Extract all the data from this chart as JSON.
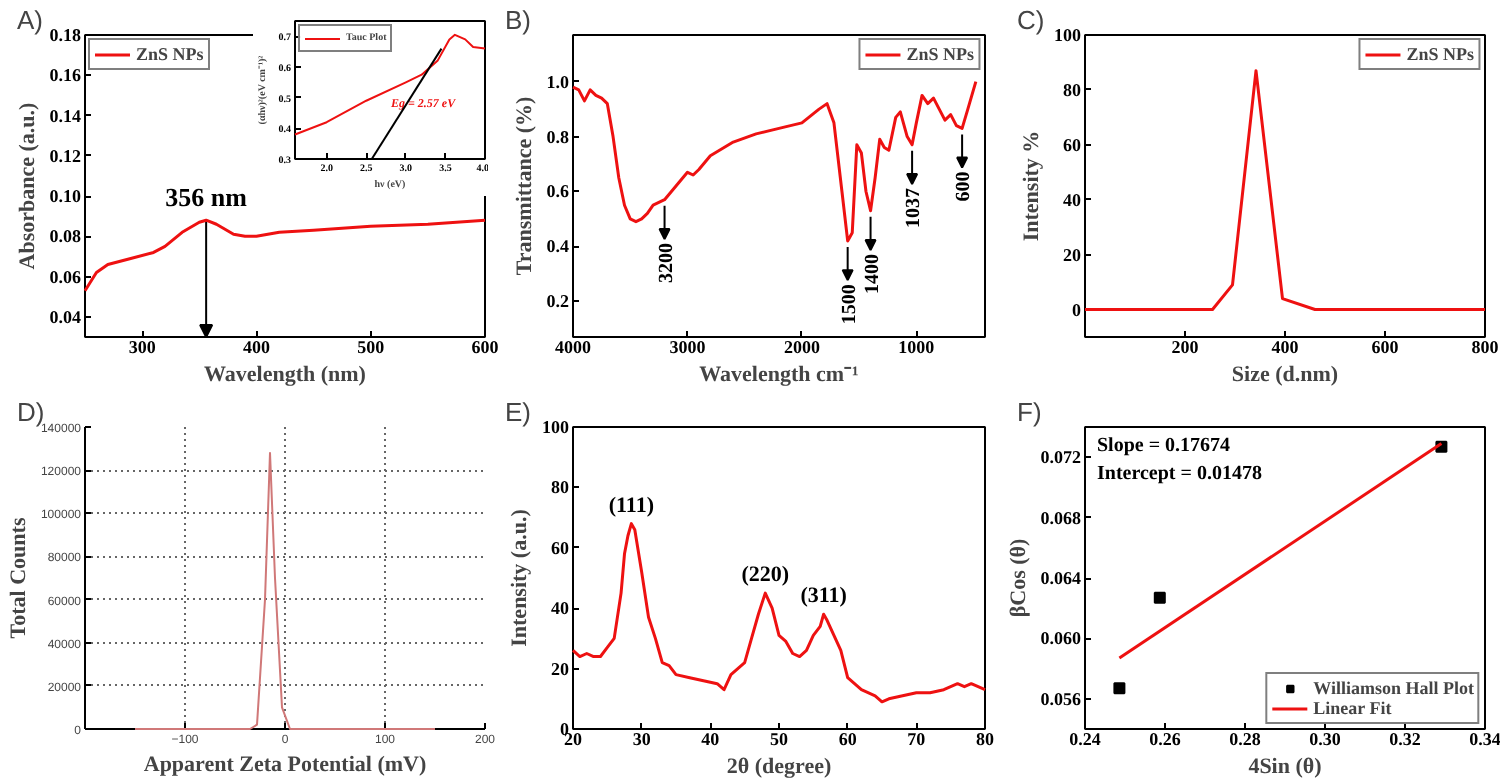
{
  "chart_data": [
    {
      "type": "line",
      "title": "A)",
      "xlabel": "Wavelength (nm)",
      "ylabel": "Absorbance (a.u.)",
      "xlim": [
        250,
        600
      ],
      "ylim": [
        0.03,
        0.18
      ],
      "xticks": [
        300,
        400,
        500,
        600
      ],
      "yticks": [
        0.04,
        0.06,
        0.08,
        {
          "value": 0.1,
          "label": "0.10"
        },
        0.12,
        0.14,
        0.16,
        0.18
      ],
      "legend": "top left",
      "series": [
        {
          "name": "ZnS NPs",
          "color": "#ee1111",
          "x": [
            250,
            260,
            270,
            290,
            310,
            320,
            335,
            350,
            356,
            365,
            380,
            390,
            400,
            420,
            450,
            500,
            550,
            600
          ],
          "values": [
            0.053,
            0.062,
            0.066,
            0.069,
            0.072,
            0.075,
            0.082,
            0.087,
            0.088,
            0.086,
            0.081,
            0.08,
            0.08,
            0.082,
            0.083,
            0.085,
            0.086,
            0.088
          ]
        }
      ],
      "annotations": [
        {
          "text": "356 nm",
          "x": 356,
          "y": 0.088
        }
      ]
    },
    {
      "type": "line",
      "xlabel": "hν (eV)",
      "ylabel": "(αhν)²(eV cm⁻¹)²",
      "xlim": [
        1.6,
        4.0
      ],
      "ylim": [
        0.3,
        0.75
      ],
      "xticks": [
        {
          "value": 2.0,
          "label": "2.0"
        },
        2.5,
        {
          "value": 3.0,
          "label": "3.0"
        },
        3.5,
        {
          "value": 4.0,
          "label": "4.0"
        }
      ],
      "yticks": [
        0.3,
        0.4,
        0.5,
        0.6,
        0.7
      ],
      "legend": "top left",
      "series": [
        {
          "name": "Tauc Plot",
          "color": "#ee1111",
          "x": [
            1.6,
            2.0,
            2.5,
            3.0,
            3.2,
            3.4,
            3.55,
            3.62,
            3.75,
            3.85,
            4.0
          ],
          "values": [
            0.38,
            0.42,
            0.49,
            0.55,
            0.575,
            0.62,
            0.69,
            0.705,
            0.69,
            0.665,
            0.66
          ]
        },
        {
          "color": "#000000",
          "x": [
            2.57,
            3.45
          ],
          "values": [
            0.3,
            0.66
          ]
        }
      ],
      "annotations": [
        "Eg = 2.57 eV"
      ]
    },
    {
      "type": "line",
      "title": "B)",
      "xlabel": "Wavelength cm⁻¹",
      "ylabel": "Transmittance (%)",
      "xlim": [
        4000,
        400
      ],
      "ylim": [
        0.07,
        1.17
      ],
      "xticks": [
        4000,
        3000,
        2000,
        1000
      ],
      "yticks": [
        0.2,
        0.4,
        0.6,
        0.8,
        {
          "value": 1.0,
          "label": "1.0"
        }
      ],
      "legend": "top right",
      "series": [
        {
          "name": "ZnS NPs",
          "color": "#ee1111",
          "x": [
            4000,
            3950,
            3900,
            3850,
            3800,
            3750,
            3700,
            3650,
            3600,
            3550,
            3500,
            3450,
            3400,
            3350,
            3300,
            3200,
            3100,
            3000,
            2950,
            2900,
            2800,
            2600,
            2400,
            2200,
            2000,
            1850,
            1780,
            1720,
            1650,
            1600,
            1560,
            1520,
            1480,
            1440,
            1400,
            1360,
            1320,
            1280,
            1240,
            1180,
            1140,
            1080,
            1037,
            1000,
            950,
            900,
            850,
            800,
            750,
            700,
            650,
            600,
            550,
            480
          ],
          "values": [
            0.98,
            0.97,
            0.93,
            0.97,
            0.95,
            0.94,
            0.92,
            0.8,
            0.65,
            0.55,
            0.5,
            0.49,
            0.5,
            0.52,
            0.55,
            0.57,
            0.62,
            0.67,
            0.66,
            0.68,
            0.73,
            0.78,
            0.81,
            0.83,
            0.85,
            0.9,
            0.92,
            0.85,
            0.6,
            0.42,
            0.45,
            0.77,
            0.74,
            0.6,
            0.53,
            0.65,
            0.79,
            0.76,
            0.75,
            0.87,
            0.89,
            0.8,
            0.77,
            0.85,
            0.95,
            0.92,
            0.94,
            0.9,
            0.86,
            0.88,
            0.84,
            0.83,
            0.9,
            1.0
          ]
        }
      ],
      "annotations": [
        {
          "text": "3200",
          "x": 3200,
          "y": 0.57
        },
        {
          "text": "1500",
          "x": 1600,
          "y": 0.42
        },
        {
          "text": "1400",
          "x": 1400,
          "y": 0.53
        },
        {
          "text": "1037",
          "x": 1037,
          "y": 0.77
        },
        {
          "text": "600",
          "x": 600,
          "y": 0.83
        }
      ]
    },
    {
      "type": "line",
      "title": "C)",
      "xlabel": "Size (d.nm)",
      "ylabel": "Intensity %",
      "xlim": [
        0,
        800
      ],
      "ylim": [
        -10,
        100
      ],
      "xticks": [
        200,
        400,
        600,
        800
      ],
      "yticks": [
        0,
        20,
        40,
        60,
        80,
        100
      ],
      "legend": "top right",
      "series": [
        {
          "name": "ZnS NPs",
          "color": "#ee1111",
          "x": [
            0,
            255,
            295,
            342,
            395,
            460,
            800
          ],
          "values": [
            0,
            0,
            9,
            87,
            4,
            0,
            0
          ]
        }
      ]
    },
    {
      "type": "line",
      "title": "D)",
      "xlabel": "Apparent Zeta Potential (mV)",
      "ylabel": "Total Counts",
      "xlim": [
        -200,
        200
      ],
      "ylim": [
        0,
        140000
      ],
      "xticks": [
        -100,
        0,
        100,
        200
      ],
      "yticks": [
        0,
        20000,
        40000,
        60000,
        80000,
        100000,
        120000,
        140000
      ],
      "grid": true,
      "series": [
        {
          "color": "#d07878",
          "x": [
            -150,
            -35,
            -28,
            -20,
            -15,
            -10,
            -3,
            5,
            150
          ],
          "values": [
            0,
            0,
            2000,
            60000,
            128000,
            70000,
            10000,
            0,
            0
          ]
        }
      ]
    },
    {
      "type": "line",
      "title": "E)",
      "xlabel": "2θ (degree)",
      "ylabel": "Intensity (a.u.)",
      "xlim": [
        20,
        80
      ],
      "ylim": [
        0,
        100
      ],
      "xticks": [
        20,
        30,
        40,
        50,
        60,
        70,
        80
      ],
      "yticks": [
        0,
        20,
        40,
        60,
        80,
        100
      ],
      "series": [
        {
          "color": "#ee1111",
          "x": [
            20,
            21,
            22,
            23,
            24,
            25,
            26,
            27,
            27.5,
            28,
            28.5,
            29,
            30,
            31,
            32,
            33,
            34,
            35,
            37,
            39,
            41,
            42,
            43,
            45,
            46,
            47,
            48,
            49,
            50,
            51,
            52,
            53,
            54,
            55,
            56,
            56.5,
            57,
            58,
            59,
            60,
            62,
            64,
            65,
            66,
            68,
            70,
            72,
            74,
            76,
            77,
            78,
            80
          ],
          "values": [
            26,
            24,
            25,
            24,
            24,
            27,
            30,
            45,
            58,
            64,
            68,
            66,
            52,
            37,
            30,
            22,
            21,
            18,
            17,
            16,
            15,
            13,
            18,
            22,
            30,
            38,
            45,
            40,
            31,
            29,
            25,
            24,
            26,
            31,
            34,
            38,
            36,
            31,
            26,
            17,
            13,
            11,
            9,
            10,
            11,
            12,
            12,
            13,
            15,
            14,
            15,
            13
          ]
        }
      ],
      "annotations": [
        {
          "text": "(111)",
          "x": 28.5,
          "y": 68
        },
        {
          "text": "(220)",
          "x": 48,
          "y": 45
        },
        {
          "text": "(311)",
          "x": 56.5,
          "y": 38
        }
      ]
    },
    {
      "type": "scatter",
      "title": "F)",
      "xlabel": "4Sin (θ)",
      "ylabel": "βCos (θ)",
      "xlim": [
        0.24,
        0.34
      ],
      "ylim": [
        0.054,
        0.074
      ],
      "xticks": [
        0.24,
        0.26,
        0.28,
        {
          "value": 0.3,
          "label": "0.30"
        },
        0.32,
        0.34
      ],
      "yticks": [
        0.056,
        {
          "value": 0.06,
          "label": "0.060"
        },
        0.064,
        0.068,
        0.072
      ],
      "legend": "bottom right",
      "series": [
        {
          "name": "Williamson Hall Plot",
          "color": "#000000",
          "marker": "square",
          "x": [
            0.2486,
            0.2587,
            0.3291
          ],
          "values": [
            0.0567,
            0.0627,
            0.0727
          ]
        },
        {
          "name": "Linear Fit",
          "type": "line",
          "color": "#ee1111",
          "x": [
            0.2486,
            0.3291
          ],
          "values": [
            0.0587,
            0.0729
          ]
        }
      ],
      "annotations": [
        "Slope = 0.17674",
        "Intercept = 0.01478"
      ]
    }
  ]
}
